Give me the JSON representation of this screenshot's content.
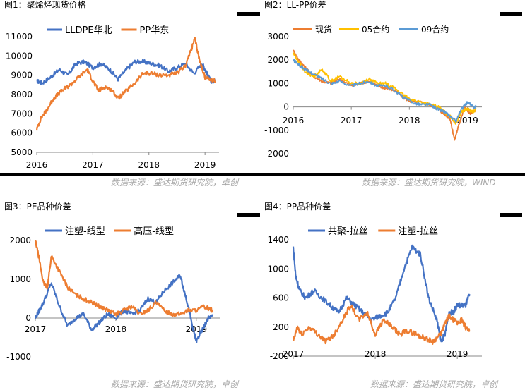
{
  "sources": {
    "left": "数据来源：盛达期货研究院，卓创",
    "right": "数据来源：盛达期货研究院，WIND",
    "bottom_left": "数据来源：盛达期货研究院，卓创",
    "bottom_right": "数据来源：盛达期货研究院，卓创"
  },
  "chart_data": [
    {
      "title": "图1：聚烯烃现货价格",
      "type": "line",
      "x_ticks": [
        "2016",
        "2017",
        "2018",
        "2019"
      ],
      "ylim": [
        5000,
        11000
      ],
      "y_ticks": [
        5000,
        6000,
        7000,
        8000,
        9000,
        10000,
        11000
      ],
      "legend": "top",
      "series": [
        {
          "name": "LLDPE华北",
          "color": "#4472c4",
          "x": [
            2016.0,
            2016.1,
            2016.25,
            2016.4,
            2016.55,
            2016.7,
            2016.85,
            2017.0,
            2017.15,
            2017.3,
            2017.45,
            2017.6,
            2017.75,
            2017.9,
            2018.05,
            2018.2,
            2018.35,
            2018.5,
            2018.65,
            2018.8,
            2018.95,
            2019.0,
            2019.05,
            2019.1,
            2019.18
          ],
          "values": [
            8700,
            8600,
            8900,
            9300,
            9000,
            9600,
            9700,
            9400,
            9600,
            9300,
            8800,
            9300,
            9700,
            9700,
            9600,
            9500,
            9200,
            9400,
            9600,
            9100,
            9600,
            9300,
            9000,
            8700,
            8700
          ]
        },
        {
          "name": "PP华东",
          "color": "#ed7d31",
          "x": [
            2016.0,
            2016.08,
            2016.18,
            2016.3,
            2016.45,
            2016.6,
            2016.75,
            2016.9,
            2017.0,
            2017.1,
            2017.22,
            2017.35,
            2017.45,
            2017.6,
            2017.75,
            2017.9,
            2018.05,
            2018.2,
            2018.35,
            2018.5,
            2018.65,
            2018.75,
            2018.82,
            2018.9,
            2019.0,
            2019.1,
            2019.18
          ],
          "values": [
            6200,
            6800,
            7200,
            7800,
            8200,
            8500,
            8900,
            9300,
            8700,
            8200,
            8400,
            8200,
            7800,
            8200,
            8600,
            9100,
            9100,
            9000,
            9000,
            9100,
            9500,
            10300,
            10900,
            9800,
            8900,
            8800,
            8700
          ]
        }
      ]
    },
    {
      "title": "图2：LL-PP价差",
      "type": "line",
      "x_ticks": [
        "2016",
        "2017",
        "2018",
        "2019"
      ],
      "ylim": [
        -2000,
        3000
      ],
      "y_ticks": [
        -2000,
        -1000,
        0,
        1000,
        2000,
        3000
      ],
      "legend": "top",
      "series": [
        {
          "name": "现货",
          "color": "#ed7d31",
          "x": [
            2016.0,
            2016.1,
            2016.2,
            2016.35,
            2016.5,
            2016.65,
            2016.8,
            2017.0,
            2017.15,
            2017.3,
            2017.45,
            2017.6,
            2017.75,
            2017.9,
            2018.05,
            2018.2,
            2018.35,
            2018.5,
            2018.6,
            2018.7,
            2018.78,
            2018.85,
            2018.95,
            2019.05,
            2019.15
          ],
          "values": [
            2400,
            2000,
            1700,
            1300,
            1100,
            1000,
            1200,
            900,
            1000,
            1100,
            900,
            800,
            700,
            400,
            200,
            200,
            100,
            -100,
            -300,
            -500,
            -1400,
            -800,
            0,
            -300,
            -100
          ]
        },
        {
          "name": "05合约",
          "color": "#ffc000",
          "x": [
            2016.0,
            2016.1,
            2016.2,
            2016.35,
            2016.5,
            2016.65,
            2016.8,
            2017.0,
            2017.15,
            2017.3,
            2017.45,
            2017.6,
            2017.75,
            2017.9,
            2018.05,
            2018.2,
            2018.35,
            2018.5,
            2018.6,
            2018.7,
            2018.8,
            2018.9,
            2019.0,
            2019.1,
            2019.15
          ],
          "values": [
            2300,
            1900,
            1500,
            1300,
            1600,
            1100,
            1300,
            1000,
            1000,
            1200,
            1000,
            1000,
            800,
            500,
            300,
            200,
            100,
            0,
            -200,
            -400,
            -700,
            -200,
            -100,
            -200,
            -100
          ]
        },
        {
          "name": "09合约",
          "color": "#5b9bd5",
          "x": [
            2016.0,
            2016.1,
            2016.2,
            2016.35,
            2016.5,
            2016.65,
            2016.8,
            2017.0,
            2017.15,
            2017.3,
            2017.45,
            2017.6,
            2017.75,
            2017.9,
            2018.05,
            2018.2,
            2018.35,
            2018.5,
            2018.6,
            2018.7,
            2018.8,
            2018.9,
            2019.0,
            2019.1,
            2019.15
          ],
          "values": [
            2000,
            1800,
            1600,
            1400,
            1200,
            1000,
            1100,
            900,
            1000,
            1100,
            900,
            900,
            700,
            400,
            200,
            100,
            100,
            -100,
            -200,
            -400,
            -600,
            -100,
            200,
            0,
            0
          ]
        }
      ]
    },
    {
      "title": "图3：PE品种价差",
      "type": "line",
      "x_ticks": [
        "2017",
        "2018",
        "2019"
      ],
      "ylim": [
        -1000,
        2000
      ],
      "y_ticks": [
        -1000,
        0,
        1000,
        2000
      ],
      "legend": "top",
      "series": [
        {
          "name": "注塑-线型",
          "color": "#4472c4",
          "x": [
            2017.0,
            2017.05,
            2017.1,
            2017.2,
            2017.3,
            2017.4,
            2017.5,
            2017.6,
            2017.7,
            2017.8,
            2017.9,
            2018.0,
            2018.1,
            2018.2,
            2018.3,
            2018.4,
            2018.5,
            2018.6,
            2018.7,
            2018.8,
            2018.85,
            2018.9,
            2018.95,
            2019.0,
            2019.05,
            2019.1,
            2019.15,
            2019.2
          ],
          "values": [
            0,
            200,
            400,
            900,
            300,
            -200,
            0,
            100,
            -300,
            -100,
            100,
            0,
            200,
            100,
            200,
            500,
            400,
            700,
            900,
            1100,
            700,
            300,
            -200,
            -600,
            -400,
            -200,
            0,
            50
          ]
        },
        {
          "name": "高压-线型",
          "color": "#ed7d31",
          "x": [
            2017.0,
            2017.05,
            2017.1,
            2017.15,
            2017.2,
            2017.3,
            2017.4,
            2017.5,
            2017.6,
            2017.7,
            2017.8,
            2017.9,
            2018.0,
            2018.1,
            2018.2,
            2018.3,
            2018.4,
            2018.5,
            2018.6,
            2018.7,
            2018.8,
            2018.9,
            2019.0,
            2019.1,
            2019.2
          ],
          "values": [
            2000,
            1500,
            900,
            800,
            1600,
            1200,
            800,
            600,
            500,
            400,
            300,
            200,
            100,
            200,
            300,
            100,
            200,
            400,
            200,
            100,
            100,
            200,
            200,
            300,
            200
          ]
        }
      ]
    },
    {
      "title": "图4：PP品种价差",
      "type": "line",
      "x_ticks": [
        "2017",
        "2018",
        "2019"
      ],
      "ylim": [
        -200,
        1400
      ],
      "y_ticks": [
        -200,
        200,
        600,
        1000,
        1400
      ],
      "legend": "top",
      "series": [
        {
          "name": "共聚-拉丝",
          "color": "#4472c4",
          "x": [
            2017.0,
            2017.03,
            2017.08,
            2017.15,
            2017.25,
            2017.35,
            2017.45,
            2017.55,
            2017.65,
            2017.75,
            2017.85,
            2017.95,
            2018.05,
            2018.15,
            2018.25,
            2018.35,
            2018.45,
            2018.55,
            2018.65,
            2018.75,
            2018.8,
            2018.85,
            2018.9,
            2018.95,
            2019.0,
            2019.05,
            2019.1,
            2019.15
          ],
          "values": [
            1300,
            900,
            700,
            600,
            700,
            600,
            500,
            400,
            600,
            500,
            400,
            300,
            350,
            400,
            600,
            1000,
            1300,
            1200,
            600,
            300,
            0,
            100,
            400,
            400,
            500,
            500,
            500,
            650
          ]
        },
        {
          "name": "注塑-拉丝",
          "color": "#ed7d31",
          "x": [
            2017.0,
            2017.05,
            2017.1,
            2017.2,
            2017.3,
            2017.4,
            2017.5,
            2017.6,
            2017.7,
            2017.8,
            2017.9,
            2018.0,
            2018.1,
            2018.2,
            2018.3,
            2018.4,
            2018.5,
            2018.6,
            2018.7,
            2018.8,
            2018.85,
            2018.9,
            2019.0,
            2019.05,
            2019.1,
            2019.15
          ],
          "values": [
            0,
            200,
            100,
            200,
            100,
            0,
            100,
            300,
            500,
            300,
            400,
            100,
            300,
            200,
            100,
            150,
            100,
            50,
            0,
            100,
            250,
            350,
            250,
            300,
            200,
            150
          ]
        }
      ]
    }
  ]
}
